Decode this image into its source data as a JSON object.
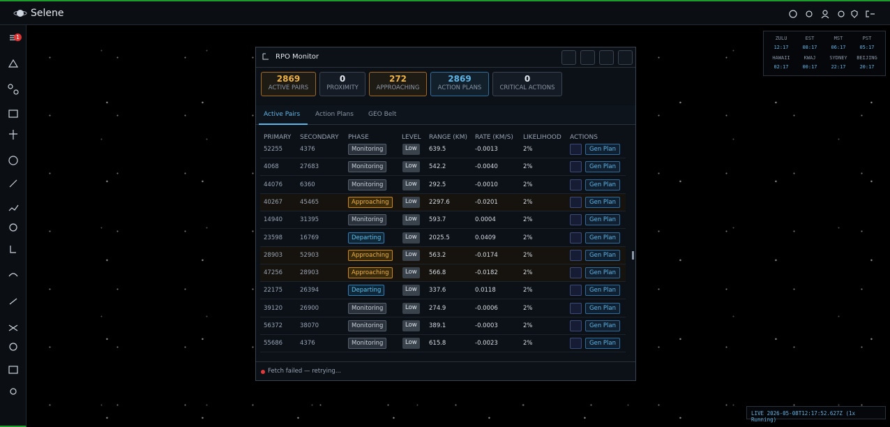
{
  "app": {
    "title": "Selene",
    "alert_badge": 1
  },
  "clocks": [
    {
      "zone": "ZULU",
      "time": "12:17"
    },
    {
      "zone": "EST",
      "time": "08:17"
    },
    {
      "zone": "MST",
      "time": "06:17"
    },
    {
      "zone": "PST",
      "time": "05:17"
    },
    {
      "zone": "HAWAII",
      "time": "02:17"
    },
    {
      "zone": "KWAJ",
      "time": "00:17"
    },
    {
      "zone": "SYDNEY",
      "time": "22:17"
    },
    {
      "zone": "BEIJING",
      "time": "20:17"
    }
  ],
  "window": {
    "title": "RPO Monitor",
    "stats": [
      {
        "value": 2869,
        "label": "ACTIVE PAIRS"
      },
      {
        "value": 0,
        "label": "PROXIMITY"
      },
      {
        "value": 272,
        "label": "APPROACHING"
      },
      {
        "value": 2869,
        "label": "ACTION PLANS"
      },
      {
        "value": 0,
        "label": "CRITICAL ACTIONS"
      }
    ],
    "tabs": [
      "Active Pairs",
      "Action Plans",
      "GEO Belt"
    ],
    "columns": [
      "PRIMARY",
      "SECONDARY",
      "PHASE",
      "LEVEL",
      "RANGE (KM)",
      "RATE (KM/S)",
      "LIKELIHOOD",
      "ACTIONS"
    ],
    "action_label": "Gen Plan",
    "rows": [
      [
        "52255",
        "4376",
        "Monitoring",
        "Low",
        "639.5",
        "-0.0013",
        "2%"
      ],
      [
        "4068",
        "27683",
        "Monitoring",
        "Low",
        "542.2",
        "-0.0040",
        "2%"
      ],
      [
        "44076",
        "6360",
        "Monitoring",
        "Low",
        "292.5",
        "-0.0010",
        "2%"
      ],
      [
        "40267",
        "45465",
        "Approaching",
        "Low",
        "2297.6",
        "-0.0201",
        "2%"
      ],
      [
        "14940",
        "31395",
        "Monitoring",
        "Low",
        "593.7",
        "0.0004",
        "2%"
      ],
      [
        "23598",
        "16769",
        "Departing",
        "Low",
        "2025.5",
        "0.0409",
        "2%"
      ],
      [
        "28903",
        "52903",
        "Approaching",
        "Low",
        "563.2",
        "-0.0174",
        "2%"
      ],
      [
        "47256",
        "28903",
        "Approaching",
        "Low",
        "566.8",
        "-0.0182",
        "2%"
      ],
      [
        "22175",
        "26394",
        "Departing",
        "Low",
        "337.6",
        "0.0118",
        "2%"
      ],
      [
        "39120",
        "26900",
        "Monitoring",
        "Low",
        "274.9",
        "-0.0006",
        "2%"
      ],
      [
        "56372",
        "38070",
        "Monitoring",
        "Low",
        "389.1",
        "-0.0003",
        "2%"
      ],
      [
        "55686",
        "4376",
        "Monitoring",
        "Low",
        "615.8",
        "-0.0023",
        "2%"
      ]
    ],
    "status": "Fetch failed — retrying..."
  },
  "status_bar": "LIVE 2026-05-08T12:17:52.627Z (1x Running)"
}
